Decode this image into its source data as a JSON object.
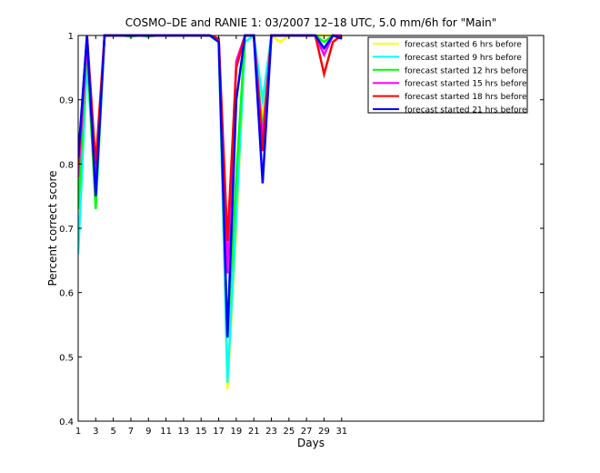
{
  "chart_data": {
    "type": "line",
    "title": "COSMO–DE and RANIE 1: 03/2007 12–18 UTC, 5.0 mm/6h for \"Main\"",
    "xlabel": "Days",
    "ylabel": "Percent correct score",
    "xlim": [
      1,
      54
    ],
    "ylim": [
      0.4,
      1.0
    ],
    "xticks": [
      1,
      3,
      5,
      7,
      9,
      11,
      13,
      15,
      17,
      19,
      21,
      23,
      25,
      27,
      29,
      31
    ],
    "yticks": [
      0.4,
      0.5,
      0.6,
      0.7,
      0.8,
      0.9,
      1.0
    ],
    "yticklabels": [
      "0.4",
      "0.5",
      "0.6",
      "0.7",
      "0.8",
      "0.9",
      "1"
    ],
    "legend_position": "top-right",
    "x": [
      1,
      2,
      3,
      4,
      5,
      6,
      7,
      8,
      9,
      10,
      11,
      12,
      13,
      14,
      15,
      16,
      17,
      18,
      19,
      20,
      21,
      22,
      23,
      24,
      25,
      26,
      27,
      28,
      29,
      30,
      31
    ],
    "series": [
      {
        "name": "forecast started 6 hrs before",
        "color": "#ffff00",
        "values": [
          0.75,
          1.0,
          0.74,
          1.0,
          1.0,
          1.0,
          1.0,
          1.0,
          1.0,
          1.0,
          1.0,
          1.0,
          1.0,
          1.0,
          1.0,
          1.0,
          0.99,
          0.45,
          0.7,
          1.0,
          1.0,
          0.88,
          1.0,
          0.99,
          1.0,
          1.0,
          1.0,
          1.0,
          1.0,
          1.0,
          1.0
        ]
      },
      {
        "name": "forecast started 9 hrs before",
        "color": "#00ffff",
        "values": [
          0.66,
          0.96,
          0.75,
          1.0,
          1.0,
          1.0,
          1.0,
          1.0,
          1.0,
          1.0,
          1.0,
          1.0,
          1.0,
          1.0,
          1.0,
          1.0,
          0.99,
          0.46,
          0.72,
          0.99,
          1.0,
          0.9,
          1.0,
          1.0,
          1.0,
          1.0,
          1.0,
          1.0,
          0.99,
          1.0,
          1.0
        ]
      },
      {
        "name": "forecast started 12 hrs before",
        "color": "#00ff00",
        "values": [
          0.73,
          0.98,
          0.73,
          1.0,
          1.0,
          1.0,
          0.998,
          1.0,
          0.998,
          1.0,
          1.0,
          1.0,
          1.0,
          1.0,
          1.0,
          1.0,
          0.99,
          0.53,
          0.78,
          1.0,
          1.0,
          0.85,
          1.0,
          1.0,
          1.0,
          1.0,
          1.0,
          1.0,
          0.99,
          1.0,
          1.0
        ]
      },
      {
        "name": "forecast started 15 hrs before",
        "color": "#ff00ff",
        "values": [
          0.78,
          0.99,
          0.77,
          1.0,
          1.0,
          1.0,
          1.0,
          1.0,
          1.0,
          1.0,
          1.0,
          1.0,
          1.0,
          1.0,
          1.0,
          1.0,
          0.995,
          0.63,
          0.96,
          1.0,
          1.0,
          0.84,
          1.0,
          1.0,
          1.0,
          1.0,
          1.0,
          1.0,
          0.97,
          1.0,
          1.0
        ]
      },
      {
        "name": "forecast started 18 hrs before",
        "color": "#ff0000",
        "values": [
          0.8,
          1.0,
          0.8,
          1.0,
          1.0,
          1.0,
          1.0,
          1.0,
          1.0,
          1.0,
          1.0,
          1.0,
          1.0,
          1.0,
          1.0,
          1.0,
          0.995,
          0.68,
          0.95,
          1.0,
          1.0,
          0.82,
          1.0,
          1.0,
          1.0,
          1.0,
          1.0,
          1.0,
          0.94,
          0.99,
          1.0
        ]
      },
      {
        "name": "forecast started 21 hrs before",
        "color": "#0000ff",
        "values": [
          0.81,
          1.0,
          0.75,
          1.0,
          1.0,
          1.0,
          1.0,
          1.0,
          1.0,
          1.0,
          1.0,
          1.0,
          1.0,
          1.0,
          1.0,
          1.0,
          0.99,
          0.53,
          0.9,
          1.0,
          1.0,
          0.77,
          1.0,
          1.0,
          1.0,
          1.0,
          1.0,
          1.0,
          0.98,
          1.0,
          0.995
        ]
      }
    ]
  }
}
